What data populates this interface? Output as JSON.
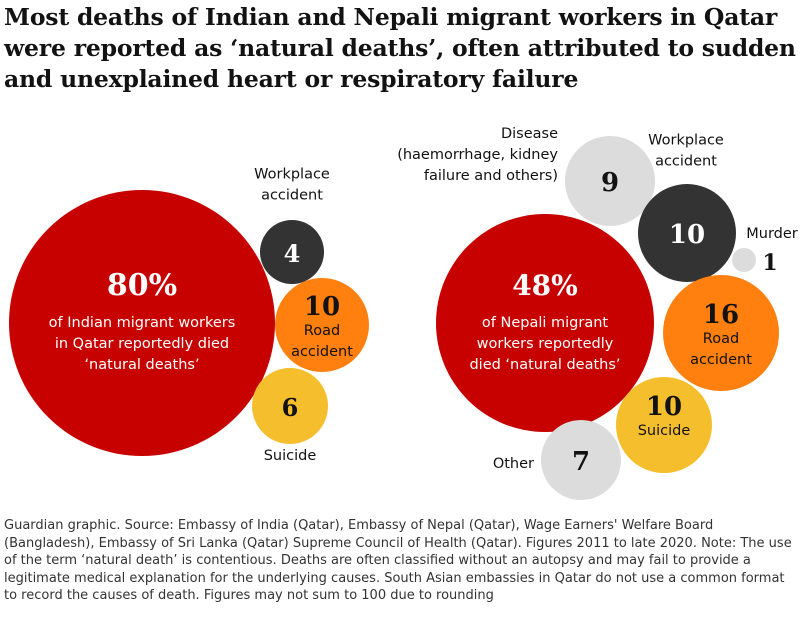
{
  "header": {
    "title": "Most deaths of Indian and Nepali migrant workers in Qatar were reported as ‘natural deaths’, often attributed to sudden and unexplained heart or respiratory failure"
  },
  "chart_data": [
    {
      "type": "bubble",
      "group": "India",
      "main": {
        "value_label": "80%",
        "value": 80,
        "caption": [
          "of Indian migrant workers",
          "in Qatar reportedly died",
          "‘natural deaths’"
        ],
        "color": "#c70000"
      },
      "bubbles": [
        {
          "category": "Workplace accident",
          "value": 4,
          "label_lines": [
            "Workplace",
            "accident"
          ],
          "color": "#333333"
        },
        {
          "category": "Road accident",
          "value": 10,
          "label_lines": [
            "Road",
            "accident"
          ],
          "color": "#ff7f0f"
        },
        {
          "category": "Suicide",
          "value": 6,
          "label_lines": [
            "Suicide"
          ],
          "color": "#f5be2c"
        }
      ]
    },
    {
      "type": "bubble",
      "group": "Nepal",
      "main": {
        "value_label": "48%",
        "value": 48,
        "caption": [
          "of Nepali migrant",
          "workers reportedly",
          "died ‘natural deaths’"
        ],
        "color": "#c70000"
      },
      "bubbles": [
        {
          "category": "Disease (haemorrhage, kidney failure and others)",
          "value": 9,
          "label_lines": [
            "Disease",
            "(haemorrhage, kidney",
            "failure and others)"
          ],
          "color": "#dcdcdc"
        },
        {
          "category": "Workplace accident",
          "value": 10,
          "label_lines": [
            "Workplace",
            "accident"
          ],
          "color": "#333333"
        },
        {
          "category": "Murder",
          "value": 1,
          "label_lines": [
            "Murder"
          ],
          "color": "#dcdcdc"
        },
        {
          "category": "Road accident",
          "value": 16,
          "label_lines": [
            "Road",
            "accident"
          ],
          "color": "#ff7f0f"
        },
        {
          "category": "Suicide",
          "value": 10,
          "label_lines": [
            "Suicide"
          ],
          "color": "#f5be2c"
        },
        {
          "category": "Other",
          "value": 7,
          "label_lines": [
            "Other"
          ],
          "color": "#dcdcdc"
        }
      ]
    }
  ],
  "footer": {
    "note": "Guardian graphic. Source: Embassy of India (Qatar), Embassy of Nepal (Qatar), Wage Earners' Welfare Board (Bangladesh), Embassy of Sri Lanka (Qatar) Supreme Council of Health (Qatar). Figures 2011 to late 2020. Note: The use of the term ‘natural death’ is contentious. Deaths are often classified without an autopsy and may fail to provide a legitimate medical explanation for the underlying causes. South Asian embassies in Qatar do not use a common format to record the causes of death. Figures may not sum to 100 due to rounding"
  }
}
